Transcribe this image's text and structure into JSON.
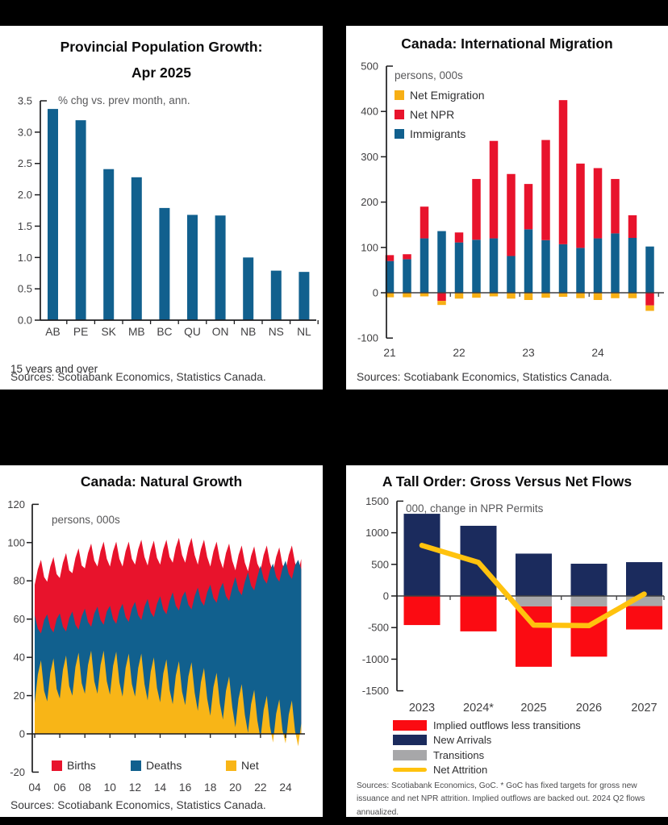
{
  "page": {
    "background": "#000000",
    "panel_background": "#ffffff"
  },
  "colors": {
    "teal_blue": "#11608E",
    "scotia_red": "#E8132C",
    "gold": "#F7AF14",
    "navy": "#1B2B5D",
    "bright_red": "#FB0B12",
    "gray": "#A7A7A9",
    "line_yellow": "#FFC20E",
    "axis": "#1d1d1f",
    "tick_label": "#414042",
    "unit_label": "#58585a"
  },
  "chart_data": [
    {
      "id": "provincial",
      "type": "bar",
      "title": "Provincial Population Growth:",
      "title_line2": "Apr 2025",
      "unit_label": "% chg vs. prev month, ann.",
      "categories": [
        "AB",
        "PE",
        "SK",
        "MB",
        "BC",
        "QU",
        "ON",
        "NB",
        "NS",
        "NL"
      ],
      "values": [
        3.37,
        3.19,
        2.41,
        2.28,
        1.79,
        1.68,
        1.67,
        1.0,
        0.79,
        0.77
      ],
      "ylim": [
        0,
        3.5
      ],
      "ytick_step": 0.5,
      "bar_color": "#11608E",
      "grid": false,
      "footnote": "15 years and over",
      "sources": "Sources: Scotiabank Economics, Statistics Canada."
    },
    {
      "id": "migration",
      "type": "stacked-bar",
      "title": "Canada: International Migration",
      "unit_label": "persons, 000s",
      "x_labels": [
        "21",
        "22",
        "23",
        "24"
      ],
      "x_label_bar_indices": [
        0,
        4,
        8,
        12
      ],
      "ylim": [
        -100,
        500
      ],
      "ytick_step": 100,
      "legend_position": "top-left-inside",
      "series": [
        {
          "name": "Net Emigration",
          "color": "#F7AF14",
          "values": [
            -10,
            -10,
            -8,
            -9,
            -13,
            -11,
            -8,
            -13,
            -16,
            -11,
            -9,
            -12,
            -16,
            -12,
            -12,
            -12
          ]
        },
        {
          "name": "Net NPR",
          "color": "#E8132C",
          "values": [
            13,
            11,
            70,
            -18,
            22,
            134,
            215,
            181,
            100,
            221,
            318,
            186,
            155,
            120,
            50,
            -28
          ]
        },
        {
          "name": "Immigrants",
          "color": "#11608E",
          "values": [
            70,
            74,
            120,
            136,
            111,
            117,
            120,
            81,
            140,
            116,
            107,
            99,
            120,
            131,
            121,
            102
          ]
        }
      ],
      "sources": "Sources: Scotiabank Economics, Statistics Canada."
    },
    {
      "id": "natural",
      "type": "area",
      "title": "Canada: Natural Growth",
      "unit_label": "persons, 000s",
      "x_start": 2004,
      "x_step": 0.25,
      "x_tick_labels": [
        "04",
        "06",
        "08",
        "10",
        "12",
        "14",
        "16",
        "18",
        "20",
        "22",
        "24"
      ],
      "ylim": [
        -20,
        120
      ],
      "ytick_step": 20,
      "legend_position": "bottom-inside",
      "series": [
        {
          "name": "Births",
          "color": "#E8132C",
          "values": [
            78,
            86,
            91,
            82,
            79.5,
            87.5,
            92.5,
            83.5,
            81.5,
            89.5,
            94.5,
            85.5,
            84,
            92,
            97,
            88,
            86.5,
            94.5,
            99.5,
            90.5,
            87.5,
            95.5,
            100.5,
            91.5,
            87.5,
            95.5,
            100.5,
            91.5,
            87.5,
            95.5,
            100.5,
            91.5,
            88.5,
            96.5,
            101.5,
            92.5,
            88,
            96,
            101,
            92,
            88.5,
            96.5,
            101.5,
            92.5,
            89.5,
            97.5,
            102.5,
            93.5,
            89.5,
            97.5,
            102.5,
            93.5,
            88.5,
            96.5,
            101.5,
            92.5,
            87.5,
            95.5,
            100.5,
            91.5,
            86.5,
            94.5,
            99.5,
            90.5,
            85.5,
            93.5,
            98.5,
            89.5,
            85,
            93,
            98,
            89,
            85.5,
            93.5,
            98.5,
            89.5,
            84.5,
            92.5,
            97.5,
            88.5,
            85.5,
            93.5,
            98.5,
            89.5,
            84.5,
            91.5
          ]
        },
        {
          "name": "Deaths",
          "color": "#11608E",
          "values": [
            62,
            55,
            52.5,
            59.5,
            62.5,
            55.5,
            53,
            60,
            63,
            56,
            53.5,
            60.5,
            64,
            57,
            54.5,
            61.5,
            65.5,
            58.5,
            56,
            63,
            66.5,
            59.5,
            57,
            64,
            67,
            60,
            57.5,
            64.5,
            68,
            61,
            58.5,
            65.5,
            69,
            62,
            59.5,
            66.5,
            70.5,
            63.5,
            61,
            68,
            72,
            65,
            62.5,
            69.5,
            74,
            67,
            64.5,
            71.5,
            74.5,
            67.5,
            65,
            72,
            76.5,
            69.5,
            67,
            74,
            78,
            71,
            68.5,
            75.5,
            79,
            72,
            69.5,
            76.5,
            82,
            75,
            72.5,
            79.5,
            84.5,
            77.5,
            75,
            82,
            88,
            81,
            78.5,
            85.5,
            89,
            82,
            79.5,
            86.5,
            90.5,
            83.5,
            81,
            88,
            91,
            86
          ]
        },
        {
          "name": "Net",
          "color": "#F8B517",
          "values": [
            16,
            31,
            38.5,
            22.5,
            17,
            32,
            39.5,
            23.5,
            18.5,
            33.5,
            41,
            25,
            20,
            35,
            42.5,
            26.5,
            21,
            36,
            43.5,
            27.5,
            21,
            36,
            43.5,
            27.5,
            20.5,
            35.5,
            43,
            27,
            19.5,
            34.5,
            42,
            26,
            19.5,
            34.5,
            42,
            26,
            17.5,
            32.5,
            40,
            24,
            16.5,
            31.5,
            39,
            23,
            15.5,
            30.5,
            38,
            22,
            15,
            30,
            37.5,
            21.5,
            12,
            27,
            34.5,
            18.5,
            9.5,
            24.5,
            32,
            16,
            7.5,
            22.5,
            30,
            14,
            3.5,
            18.5,
            26,
            10,
            0.5,
            15.5,
            23,
            7,
            -2.5,
            12.5,
            20,
            4,
            -4.5,
            10.5,
            18,
            2,
            -5,
            10,
            17.5,
            1.5,
            -6.5,
            5.5
          ]
        }
      ],
      "sources": "Sources: Scotiabank Economics, Statistics Canada."
    },
    {
      "id": "flows",
      "type": "stacked-bar-line",
      "title": "A Tall Order: Gross Versus Net Flows",
      "unit_label": "000, change in NPR Permits",
      "categories": [
        "2023",
        "2024*",
        "2025",
        "2026",
        "2027"
      ],
      "ylim": [
        -1500,
        1500
      ],
      "ytick_step": 500,
      "legend_position": "bottom-outside",
      "series": [
        {
          "name": "Implied outflows less transitions",
          "color": "#FB0B12",
          "role": "bar-negative",
          "values": [
            -460,
            -560,
            -955,
            -795,
            -370
          ]
        },
        {
          "name": "New Arrivals",
          "color": "#1B2B5D",
          "role": "bar-positive",
          "values": [
            1300,
            1110,
            670,
            510,
            535
          ]
        },
        {
          "name": "Transitions",
          "color": "#A7A7A9",
          "role": "bar-negative-first",
          "values": [
            0,
            0,
            -165,
            -165,
            -160
          ]
        },
        {
          "name": "Net Attrition",
          "color": "#FFC20E",
          "role": "line",
          "values": [
            800,
            530,
            -460,
            -470,
            30
          ]
        }
      ],
      "sources": "Sources: Scotiabank Economics, GoC. * GoC has fixed targets for gross new issuance and net NPR attrition. Implied outflows are backed out. 2024 Q2 flows annualized."
    }
  ]
}
